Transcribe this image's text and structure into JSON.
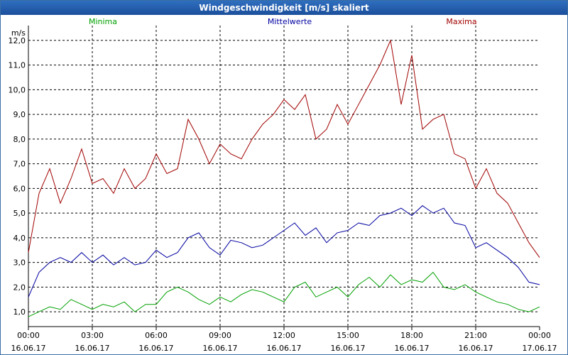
{
  "window": {
    "title": "Windgeschwindigkeit [m/s] skaliert"
  },
  "chart_data": {
    "type": "line",
    "title": "Windgeschwindigkeit [m/s] skaliert",
    "ylabel": "m/s",
    "xlabel": "",
    "ylim": [
      0.4,
      12.6
    ],
    "xlim": [
      0,
      24
    ],
    "y_ticks": [
      "1,0",
      "2,0",
      "3,0",
      "4,0",
      "5,0",
      "6,0",
      "7,0",
      "8,0",
      "9,0",
      "10,0",
      "11,0",
      "12,0"
    ],
    "y_tick_values": [
      1,
      2,
      3,
      4,
      5,
      6,
      7,
      8,
      9,
      10,
      11,
      12
    ],
    "x_ticks": [
      {
        "time": "00:00",
        "date": "16.06.17",
        "h": 0
      },
      {
        "time": "03:00",
        "date": "16.06.17",
        "h": 3
      },
      {
        "time": "06:00",
        "date": "16.06.17",
        "h": 6
      },
      {
        "time": "09:00",
        "date": "16.06.17",
        "h": 9
      },
      {
        "time": "12:00",
        "date": "16.06.17",
        "h": 12
      },
      {
        "time": "15:00",
        "date": "16.06.17",
        "h": 15
      },
      {
        "time": "18:00",
        "date": "16.06.17",
        "h": 18
      },
      {
        "time": "21:00",
        "date": "16.06.17",
        "h": 21
      },
      {
        "time": "00:00",
        "date": "17.06.17",
        "h": 24
      }
    ],
    "grid": true,
    "legend": [
      "Minima",
      "Mittelwerte",
      "Maxima"
    ],
    "series": [
      {
        "name": "Minima",
        "color": "#00a000",
        "x": [
          0,
          0.5,
          1,
          1.5,
          2,
          2.5,
          3,
          3.5,
          4,
          4.5,
          5,
          5.5,
          6,
          6.5,
          7,
          7.5,
          8,
          8.5,
          9,
          9.5,
          10,
          10.5,
          11,
          11.5,
          12,
          12.5,
          13,
          13.5,
          14,
          14.5,
          15,
          15.5,
          16,
          16.5,
          17,
          17.5,
          18,
          18.5,
          19,
          19.5,
          20,
          20.5,
          21,
          21.5,
          22,
          22.5,
          23,
          23.5,
          24
        ],
        "values": [
          0.8,
          1.0,
          1.2,
          1.1,
          1.5,
          1.3,
          1.1,
          1.3,
          1.2,
          1.4,
          1.0,
          1.3,
          1.3,
          1.8,
          2.0,
          1.8,
          1.5,
          1.3,
          1.6,
          1.4,
          1.7,
          1.9,
          1.8,
          1.6,
          1.4,
          2.0,
          2.2,
          1.6,
          1.8,
          2.0,
          1.6,
          2.1,
          2.4,
          2.0,
          2.5,
          2.1,
          2.3,
          2.2,
          2.6,
          2.0,
          1.9,
          2.1,
          1.8,
          1.6,
          1.4,
          1.3,
          1.1,
          1.0,
          1.2
        ]
      },
      {
        "name": "Mittelwerte",
        "color": "#0000a0",
        "x": [
          0,
          0.5,
          1,
          1.5,
          2,
          2.5,
          3,
          3.5,
          4,
          4.5,
          5,
          5.5,
          6,
          6.5,
          7,
          7.5,
          8,
          8.5,
          9,
          9.5,
          10,
          10.5,
          11,
          11.5,
          12,
          12.5,
          13,
          13.5,
          14,
          14.5,
          15,
          15.5,
          16,
          16.5,
          17,
          17.5,
          18,
          18.5,
          19,
          19.5,
          20,
          20.5,
          21,
          21.5,
          22,
          22.5,
          23,
          23.5,
          24
        ],
        "values": [
          1.6,
          2.6,
          3.0,
          3.2,
          3.0,
          3.4,
          3.0,
          3.3,
          2.9,
          3.2,
          2.9,
          3.0,
          3.5,
          3.2,
          3.4,
          4.0,
          4.2,
          3.6,
          3.3,
          3.9,
          3.8,
          3.6,
          3.7,
          4.0,
          4.3,
          4.6,
          4.1,
          4.4,
          3.8,
          4.2,
          4.3,
          4.6,
          4.5,
          4.9,
          5.0,
          5.2,
          4.9,
          5.3,
          5.0,
          5.2,
          4.6,
          4.5,
          3.6,
          3.8,
          3.5,
          3.2,
          2.8,
          2.2,
          2.1
        ]
      },
      {
        "name": "Maxima",
        "color": "#a00000",
        "x": [
          0,
          0.5,
          1,
          1.5,
          2,
          2.5,
          3,
          3.5,
          4,
          4.5,
          5,
          5.5,
          6,
          6.5,
          7,
          7.5,
          8,
          8.5,
          9,
          9.5,
          10,
          10.5,
          11,
          11.5,
          12,
          12.5,
          13,
          13.5,
          14,
          14.5,
          15,
          15.5,
          16,
          16.5,
          17,
          17.5,
          18,
          18.5,
          19,
          19.5,
          20,
          20.5,
          21,
          21.5,
          22,
          22.5,
          23,
          23.5,
          24
        ],
        "values": [
          3.4,
          5.8,
          6.8,
          5.4,
          6.4,
          7.6,
          6.2,
          6.4,
          5.8,
          6.8,
          6.0,
          6.4,
          7.4,
          6.6,
          6.8,
          8.8,
          8.0,
          7.0,
          7.8,
          7.4,
          7.2,
          8.0,
          8.6,
          9.0,
          9.6,
          9.2,
          9.8,
          8.0,
          8.4,
          9.4,
          8.6,
          9.4,
          10.2,
          11.0,
          12.0,
          9.4,
          11.4,
          8.4,
          8.8,
          9.0,
          7.4,
          7.2,
          6.0,
          6.8,
          5.8,
          5.4,
          4.6,
          3.8,
          3.2
        ]
      }
    ]
  }
}
